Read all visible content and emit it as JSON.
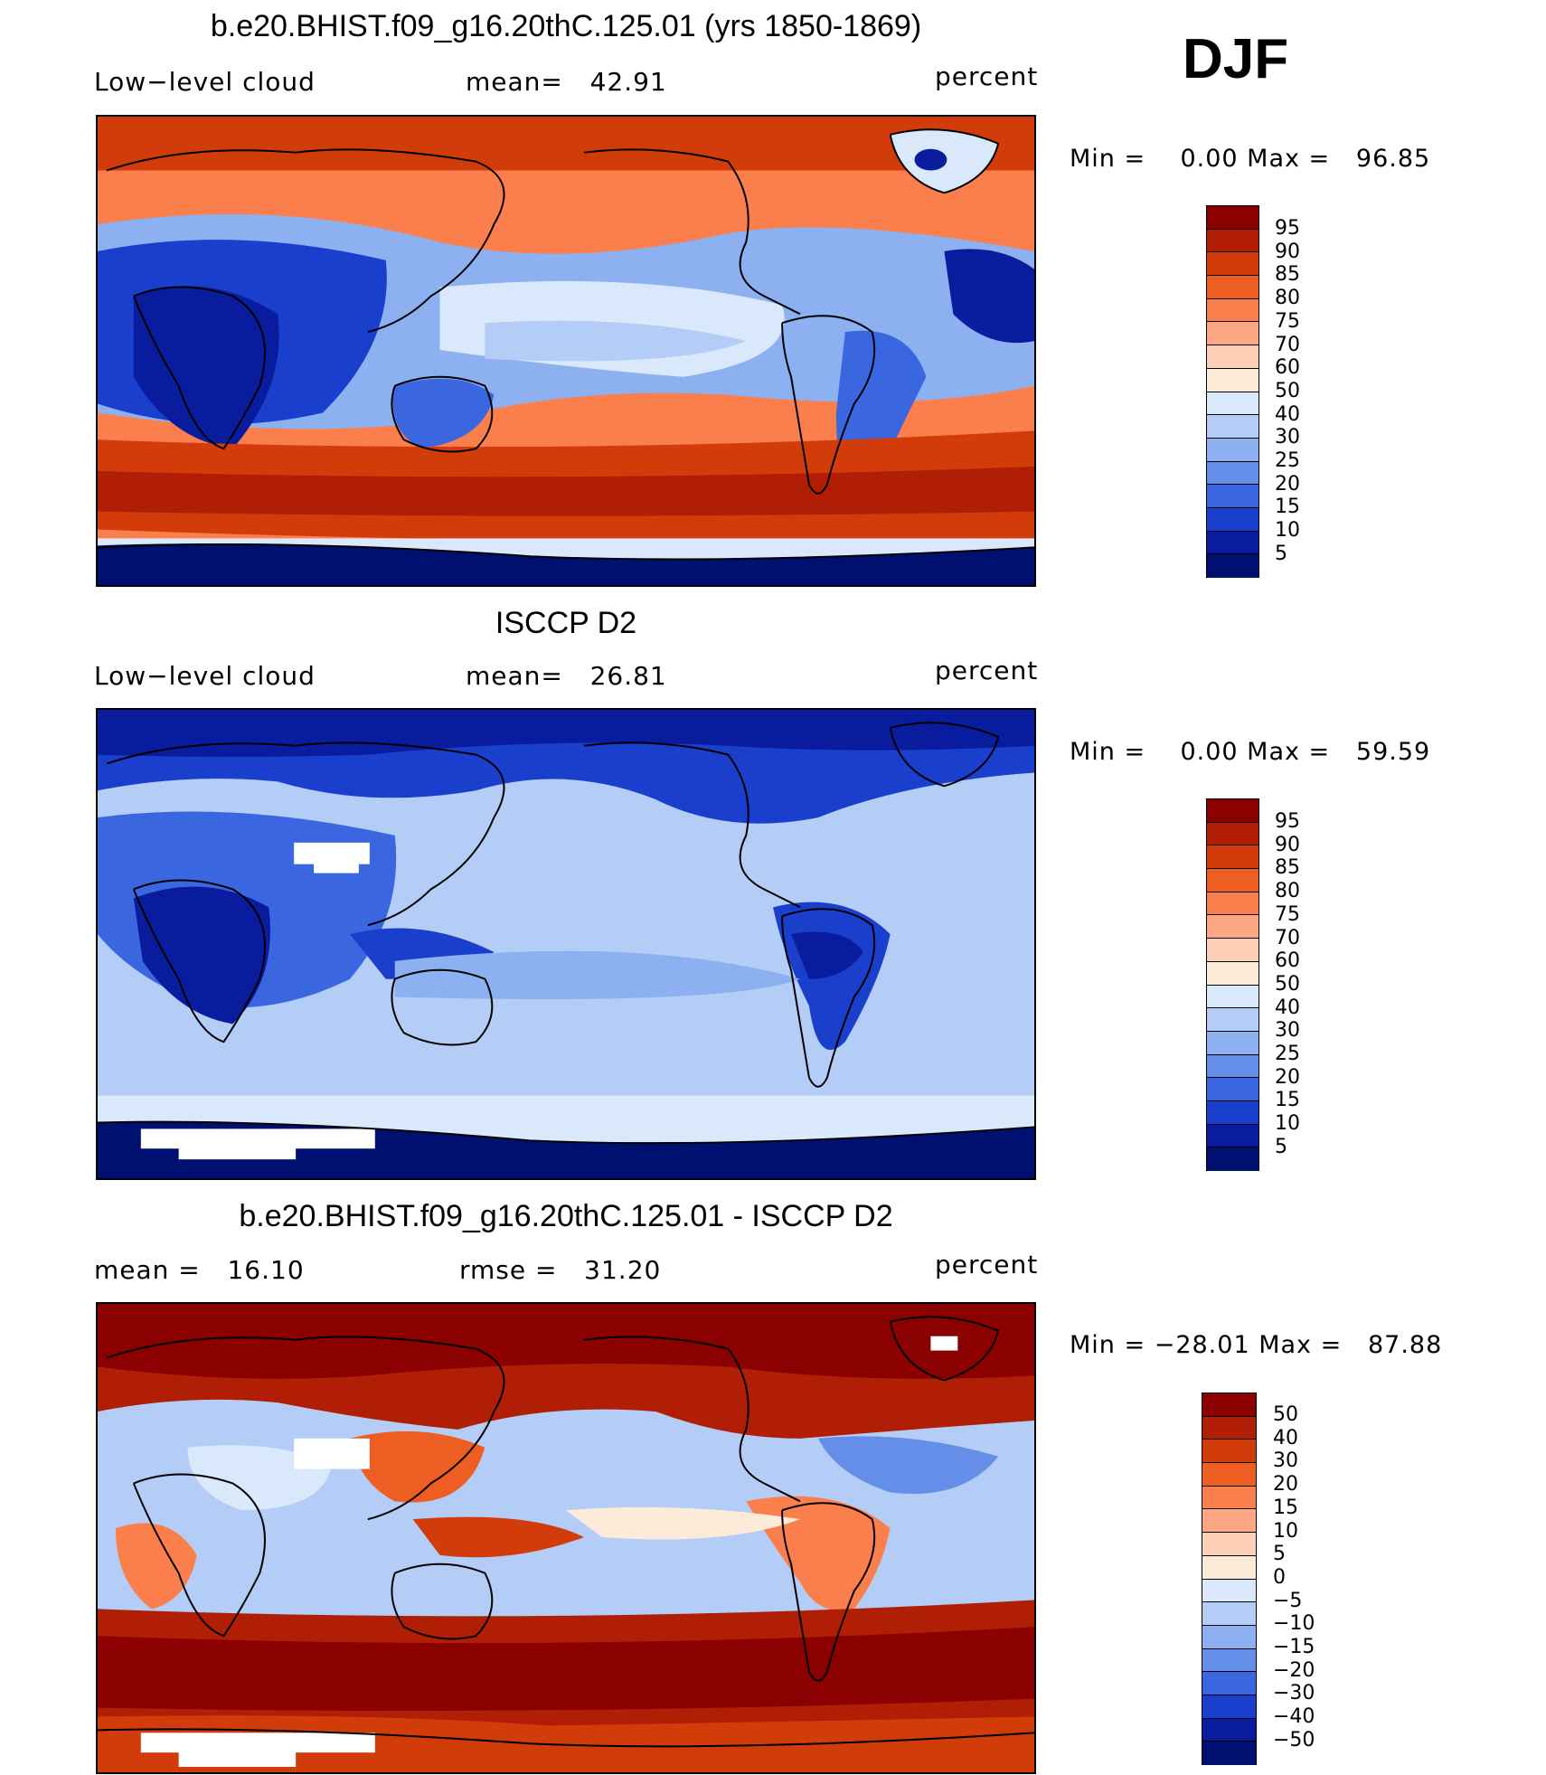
{
  "season": "DJF",
  "panels": [
    {
      "title": "b.e20.BHIST.f09_g16.20thC.125.01 (yrs 1850-1869)",
      "left_label": "Low−level cloud",
      "mid_label": "mean=   42.91",
      "right_label": "percent",
      "minmax": "Min =    0.00 Max =   96.85",
      "cbar_labels": [
        "95",
        "90",
        "85",
        "80",
        "75",
        "70",
        "60",
        "50",
        "40",
        "30",
        "25",
        "20",
        "15",
        "10",
        "5"
      ]
    },
    {
      "title": "ISCCP D2",
      "left_label": "Low−level cloud",
      "mid_label": "mean=   26.81",
      "right_label": "percent",
      "minmax": "Min =    0.00 Max =   59.59",
      "cbar_labels": [
        "95",
        "90",
        "85",
        "80",
        "75",
        "70",
        "60",
        "50",
        "40",
        "30",
        "25",
        "20",
        "15",
        "10",
        "5"
      ]
    },
    {
      "title": "b.e20.BHIST.f09_g16.20thC.125.01 - ISCCP D2",
      "left_label": "mean =   16.10",
      "mid_label": "rmse =   31.20",
      "right_label": "percent",
      "minmax": "Min = −28.01 Max =   87.88",
      "cbar_labels": [
        "50",
        "40",
        "30",
        "20",
        "15",
        "10",
        "5",
        "0",
        "−5",
        "−10",
        "−15",
        "−20",
        "−30",
        "−40",
        "−50"
      ]
    }
  ],
  "colors": {
    "scale": [
      "#8b0000",
      "#b01e05",
      "#d23b0a",
      "#ee5d22",
      "#fb7f4d",
      "#fca885",
      "#fdd0b7",
      "#fdebd9",
      "#d9e8fb",
      "#b4cdf7",
      "#8db0f0",
      "#648ee8",
      "#3a67df",
      "#1a3fcc",
      "#0a1c9e",
      "#001070"
    ],
    "land_outline": "#000000"
  }
}
